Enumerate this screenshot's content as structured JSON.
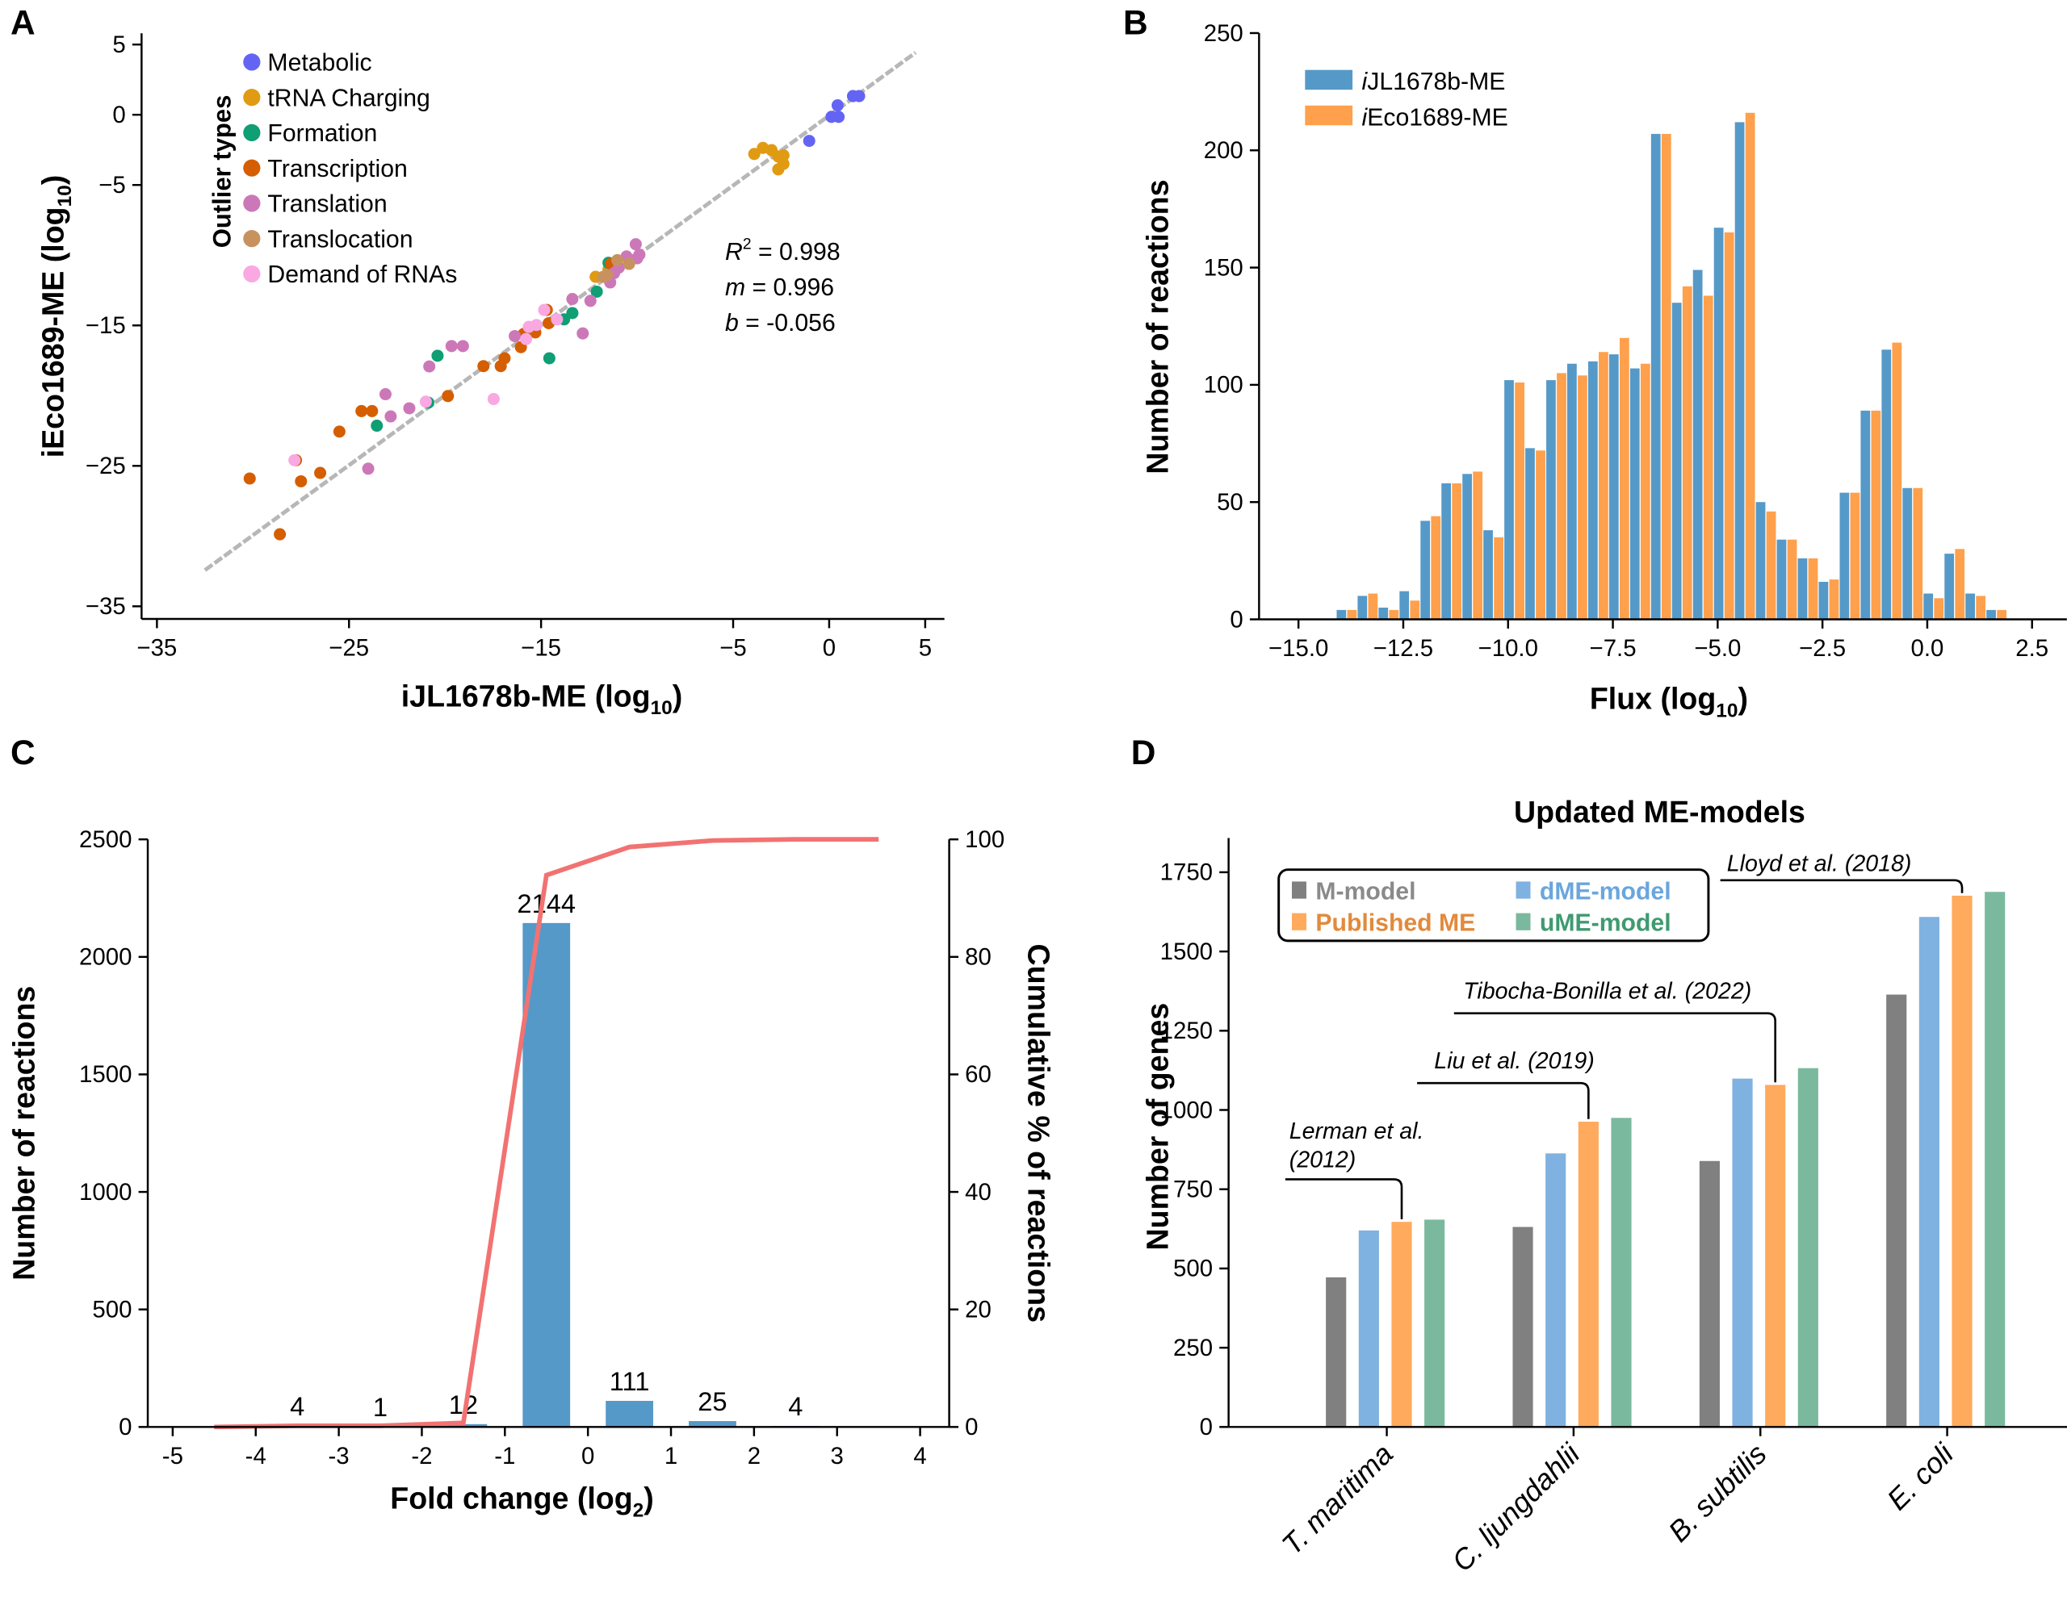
{
  "panel_letters": [
    "A",
    "B",
    "C",
    "D"
  ],
  "chart_data": [
    {
      "panel": "A",
      "type": "scatter",
      "xlabel": {
        "text": "iJL1678b-ME (log",
        "sub": "10",
        "suffix": ")"
      },
      "ylabel": {
        "text": "iEco1689-ME (log",
        "sub": "10",
        "suffix": ")"
      },
      "xlim": [
        -35.8,
        6.0
      ],
      "ylim": [
        -35.9,
        5.8
      ],
      "xticks": [
        -35,
        -25,
        -15,
        -5,
        0,
        5
      ],
      "xtick_labels": [
        "−35",
        "−25",
        "−15",
        "−5",
        "0",
        "5"
      ],
      "yticks": [
        5,
        0,
        -5,
        -15,
        -25,
        -35
      ],
      "ytick_labels": [
        "5",
        "0",
        "−5",
        "−15",
        "−25",
        "−35"
      ],
      "legend_title": "Outlier types",
      "legend_placement": "top-left",
      "fit_line": {
        "x_range": [
          -32.5,
          4.5
        ],
        "m": 0.996,
        "b": -0.056,
        "color": "#a0a0a0"
      },
      "stats": [
        {
          "symbol": "R",
          "sup": "2",
          "value": " = 0.998"
        },
        {
          "symbol": "m",
          "sup": "",
          "value": " = 0.996"
        },
        {
          "symbol": "b",
          "sup": "",
          "value": " = -0.056"
        }
      ],
      "series": [
        {
          "name": "Metabolic",
          "color": "#6464f4",
          "points": [
            [
              1.24,
              1.33
            ],
            [
              1.56,
              1.33
            ],
            [
              0.44,
              0.67
            ],
            [
              0.12,
              -0.15
            ],
            [
              0.49,
              -0.15
            ],
            [
              -1.04,
              -1.86
            ]
          ]
        },
        {
          "name": "tRNA Charging",
          "color": "#e09b12",
          "points": [
            [
              -3.9,
              -2.79
            ],
            [
              -3.45,
              -2.36
            ],
            [
              -3.0,
              -2.52
            ],
            [
              -2.65,
              -2.97
            ],
            [
              -2.38,
              -2.89
            ],
            [
              -2.38,
              -3.5
            ],
            [
              -2.65,
              -3.89
            ],
            [
              -12.16,
              -11.54
            ],
            [
              -11.49,
              -11.0
            ]
          ]
        },
        {
          "name": "Formation",
          "color": "#109e74",
          "points": [
            [
              -11.49,
              -10.54
            ],
            [
              -12.1,
              -12.6
            ],
            [
              -13.37,
              -14.12
            ],
            [
              -13.8,
              -14.57
            ],
            [
              -14.57,
              -17.34
            ],
            [
              -20.39,
              -17.16
            ],
            [
              -20.87,
              -20.5
            ],
            [
              -23.55,
              -22.14
            ]
          ]
        },
        {
          "name": "Transcription",
          "color": "#d55e00",
          "points": [
            [
              -11.36,
              -10.62
            ],
            [
              -14.7,
              -13.9
            ],
            [
              -14.6,
              -14.84
            ],
            [
              -15.3,
              -15.5
            ],
            [
              -16.05,
              -16.55
            ],
            [
              -15.9,
              -15.6
            ],
            [
              -16.9,
              -17.34
            ],
            [
              -17.1,
              -17.9
            ],
            [
              -18.0,
              -17.9
            ],
            [
              -19.85,
              -20.03
            ],
            [
              -24.35,
              -21.1
            ],
            [
              -23.8,
              -21.1
            ],
            [
              -25.5,
              -22.56
            ],
            [
              -27.76,
              -24.6
            ],
            [
              -26.5,
              -25.5
            ],
            [
              -27.5,
              -26.1
            ],
            [
              -30.17,
              -25.9
            ],
            [
              -28.6,
              -29.87
            ]
          ]
        },
        {
          "name": "Translation",
          "color": "#cc78b8",
          "points": [
            [
              -10.07,
              -9.22
            ],
            [
              -9.88,
              -9.96
            ],
            [
              -10.0,
              -10.22
            ],
            [
              -10.55,
              -10.09
            ],
            [
              -10.95,
              -10.88
            ],
            [
              -11.2,
              -11.28
            ],
            [
              -11.4,
              -11.94
            ],
            [
              -13.37,
              -13.12
            ],
            [
              -12.43,
              -13.25
            ],
            [
              -12.83,
              -15.57
            ],
            [
              -16.37,
              -15.76
            ],
            [
              -19.66,
              -16.47
            ],
            [
              -19.07,
              -16.47
            ],
            [
              -20.82,
              -17.92
            ],
            [
              -23.1,
              -19.9
            ],
            [
              -21.86,
              -20.9
            ],
            [
              -22.83,
              -21.48
            ],
            [
              -24.0,
              -25.2
            ]
          ]
        },
        {
          "name": "Translocation",
          "color": "#c8925f",
          "points": [
            [
              -11.03,
              -10.35
            ],
            [
              -10.42,
              -10.62
            ],
            [
              -11.57,
              -11.41
            ],
            [
              -11.76,
              -11.54
            ]
          ]
        },
        {
          "name": "Demand of RNAs",
          "color": "#f9a8e2",
          "points": [
            [
              -14.84,
              -13.9
            ],
            [
              -14.17,
              -14.57
            ],
            [
              -15.64,
              -15.1
            ],
            [
              -15.24,
              -14.97
            ],
            [
              -15.78,
              -15.97
            ],
            [
              -21.0,
              -20.43
            ],
            [
              -17.47,
              -20.24
            ],
            [
              -27.84,
              -24.6
            ]
          ]
        }
      ]
    },
    {
      "panel": "B",
      "type": "bar",
      "xlabel": {
        "text": "Flux (log",
        "sub": "10",
        "suffix": ")"
      },
      "ylabel": {
        "text": "Number of reactions",
        "sub": "",
        "suffix": ""
      },
      "xlim": [
        -15.94,
        3.33
      ],
      "ylim": [
        0,
        250
      ],
      "xticks": [
        -15,
        -12.5,
        -10,
        -7.5,
        -5,
        -2.5,
        0,
        2.5
      ],
      "xtick_labels": [
        "−15.0",
        "−12.5",
        "−10.0",
        "−7.5",
        "−5.0",
        "−2.5",
        "0.0",
        "2.5"
      ],
      "yticks": [
        0,
        50,
        100,
        150,
        200,
        250
      ],
      "ytick_labels": [
        "0",
        "50",
        "100",
        "150",
        "200",
        "250"
      ],
      "legend_placement": "top-left",
      "bin_centers": [
        -13.85,
        -13.35,
        -12.85,
        -12.35,
        -11.85,
        -11.35,
        -10.85,
        -10.35,
        -9.85,
        -9.35,
        -8.85,
        -8.35,
        -7.85,
        -7.35,
        -6.85,
        -6.35,
        -5.85,
        -5.35,
        -4.85,
        -4.35,
        -3.85,
        -3.35,
        -2.85,
        -2.35,
        -1.85,
        -1.35,
        -0.85,
        -0.35,
        0.15,
        0.65,
        1.15,
        1.65
      ],
      "series": [
        {
          "name": "iJL1678b-ME",
          "color": "#5599c8",
          "values": [
            4,
            10,
            5,
            12,
            42,
            58,
            62,
            38,
            102,
            73,
            102,
            109,
            110,
            113,
            107,
            207,
            135,
            149,
            167,
            212,
            50,
            34,
            26,
            16,
            54,
            89,
            115,
            56,
            11,
            28,
            11,
            4
          ]
        },
        {
          "name": "iEco1689-ME",
          "color": "#ffa04c",
          "values": [
            4,
            11,
            4,
            8,
            44,
            58,
            63,
            35,
            101,
            72,
            105,
            104,
            114,
            120,
            109,
            207,
            142,
            138,
            165,
            216,
            46,
            34,
            26,
            17,
            54,
            89,
            118,
            56,
            9,
            30,
            10,
            4
          ]
        }
      ]
    },
    {
      "panel": "C",
      "type": "bar",
      "xlabel": {
        "text": "Fold change (log",
        "sub": "2",
        "suffix": ")"
      },
      "ylabel": {
        "text": "Number of reactions",
        "sub": "",
        "suffix": ""
      },
      "y2label": {
        "text": "Cumulative % of reactions",
        "sub": "",
        "suffix": ""
      },
      "xlim": [
        -5.3,
        4.35
      ],
      "ylim": [
        0,
        2500
      ],
      "y2lim": [
        0,
        100
      ],
      "xticks": [
        -5,
        -4,
        -3,
        -2,
        -1,
        0,
        1,
        2,
        3,
        4
      ],
      "xtick_labels": [
        "-5",
        "-4",
        "-3",
        "-2",
        "-1",
        "0",
        "1",
        "2",
        "3",
        "4"
      ],
      "yticks": [
        0,
        500,
        1000,
        1500,
        2000,
        2500
      ],
      "ytick_labels": [
        "0",
        "500",
        "1000",
        "1500",
        "2000",
        "2500"
      ],
      "y2ticks": [
        0,
        20,
        40,
        60,
        80,
        100
      ],
      "y2tick_labels": [
        "0",
        "20",
        "40",
        "60",
        "80",
        "100"
      ],
      "bars": {
        "color": "#5599c8",
        "x": [
          -3.5,
          -2.5,
          -1.5,
          -0.5,
          0.5,
          1.5,
          2.5
        ],
        "values": [
          4,
          1,
          12,
          2144,
          111,
          25,
          4
        ],
        "labels": [
          "4",
          "1",
          "12",
          "2144",
          "111",
          "25",
          "4"
        ]
      },
      "cumulative": {
        "type": "line",
        "color": "#f27272",
        "x": [
          -4.5,
          -3.5,
          -2.5,
          -1.5,
          -0.5,
          0.5,
          1.5,
          2.5,
          3.5
        ],
        "values": [
          0,
          0.2,
          0.2,
          0.7,
          93.9,
          98.7,
          99.8,
          100,
          100
        ]
      }
    },
    {
      "panel": "D",
      "type": "bar",
      "title": "Updated ME-models",
      "ylabel": {
        "text": "Number of genes",
        "sub": "",
        "suffix": ""
      },
      "ylim": [
        0,
        1858
      ],
      "yticks": [
        0,
        250,
        500,
        750,
        1000,
        1250,
        1500,
        1750
      ],
      "ytick_labels": [
        "0",
        "250",
        "500",
        "750",
        "1000",
        "1250",
        "1500",
        "1750"
      ],
      "categories": [
        "T. maritima",
        "C. ljungdahlii",
        "B. subtilis",
        "E. coli"
      ],
      "legend_placement": "top-left",
      "series": [
        {
          "name": "M-model",
          "color": "#808080",
          "text_color": "#8a8a8a",
          "values": [
            472,
            631,
            839,
            1364
          ]
        },
        {
          "name": "dME-model",
          "color": "#7fb2e0",
          "text_color": "#6aa6dd",
          "values": [
            620,
            863,
            1099,
            1609
          ]
        },
        {
          "name": "Published ME",
          "color": "#ffaa5c",
          "text_color": "#e28a3c",
          "values": [
            647,
            963,
            1079,
            1676
          ]
        },
        {
          "name": "uME-model",
          "color": "#7ab99d",
          "text_color": "#3f9a70",
          "values": [
            654,
            975,
            1132,
            1688
          ]
        }
      ],
      "annotations": [
        {
          "lines": [
            "Lerman et al.",
            "(2012)"
          ],
          "category": 0,
          "series": "Published ME"
        },
        {
          "lines": [
            "Liu et al. (2019)"
          ],
          "category": 1,
          "series": "Published ME"
        },
        {
          "lines": [
            "Tibocha-Bonilla et al. (2022)"
          ],
          "category": 2,
          "series": "Published ME"
        },
        {
          "lines": [
            "Lloyd et al. (2018)"
          ],
          "category": 3,
          "series": "Published ME"
        }
      ]
    }
  ]
}
